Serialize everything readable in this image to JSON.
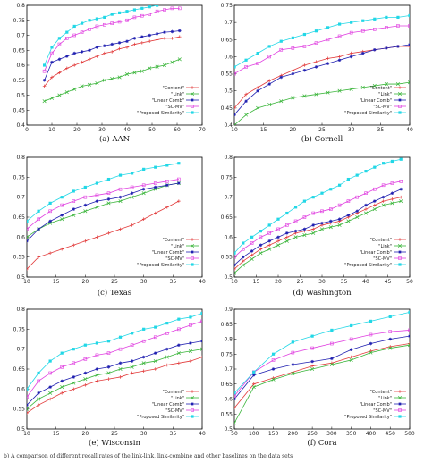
{
  "figure": {
    "bottom_strip": "b)  A comparison of different recall rates of the link-link, link-combine and other baselines on the data sets"
  },
  "series_colors": [
    "#e23b3b",
    "#3ab53a",
    "#1f1fb0",
    "#e040e0",
    "#22d7e6"
  ],
  "series_markers": [
    "plus",
    "x",
    "star",
    "square",
    "filled-square"
  ],
  "chart_data": [
    {
      "id": "aan",
      "type": "line",
      "caption": "(a)  AAN",
      "xlim": [
        0,
        70
      ],
      "ylim": [
        0.4,
        0.8
      ],
      "xticks": [
        "0",
        "10",
        "20",
        "30",
        "40",
        "50",
        "60",
        "70"
      ],
      "yticks": [
        "0.4",
        "0.45",
        "0.5",
        "0.55",
        "0.6",
        "0.65",
        "0.7",
        "0.75",
        "0.8"
      ],
      "legend_position": "bottom-right",
      "x": [
        7,
        10,
        13,
        16,
        19,
        22,
        25,
        28,
        31,
        34,
        37,
        40,
        43,
        46,
        49,
        52,
        55,
        58,
        61
      ],
      "series": [
        {
          "name": "\"Content\"",
          "values": [
            0.53,
            0.56,
            0.575,
            0.59,
            0.6,
            0.61,
            0.62,
            0.63,
            0.64,
            0.645,
            0.655,
            0.66,
            0.67,
            0.675,
            0.68,
            0.685,
            0.69,
            0.69,
            0.695
          ]
        },
        {
          "name": "\"Link\"",
          "values": [
            0.48,
            0.49,
            0.5,
            0.51,
            0.52,
            0.53,
            0.535,
            0.54,
            0.55,
            0.555,
            0.56,
            0.57,
            0.575,
            0.58,
            0.59,
            0.595,
            0.6,
            0.61,
            0.62
          ]
        },
        {
          "name": "\"Linear Comb\"",
          "values": [
            0.55,
            0.61,
            0.62,
            0.63,
            0.64,
            0.645,
            0.65,
            0.66,
            0.665,
            0.67,
            0.675,
            0.68,
            0.69,
            0.695,
            0.7,
            0.705,
            0.71,
            0.712,
            0.715
          ]
        },
        {
          "name": "\"SC-MV\"",
          "values": [
            0.58,
            0.64,
            0.67,
            0.69,
            0.7,
            0.71,
            0.72,
            0.73,
            0.735,
            0.74,
            0.745,
            0.75,
            0.76,
            0.765,
            0.77,
            0.78,
            0.785,
            0.79,
            0.79
          ]
        },
        {
          "name": "\"Proposed Similarity\"",
          "values": [
            0.6,
            0.66,
            0.69,
            0.71,
            0.73,
            0.74,
            0.75,
            0.755,
            0.76,
            0.77,
            0.775,
            0.78,
            0.785,
            0.79,
            0.795,
            0.8,
            0.805,
            0.81,
            0.815
          ]
        }
      ]
    },
    {
      "id": "cornell",
      "type": "line",
      "caption": "(b)  Cornell",
      "xlim": [
        10,
        40
      ],
      "ylim": [
        0.4,
        0.75
      ],
      "xticks": [
        "10",
        "15",
        "20",
        "25",
        "30",
        "35",
        "40"
      ],
      "yticks": [
        "0.4",
        "0.45",
        "0.5",
        "0.55",
        "0.6",
        "0.65",
        "0.7",
        "0.75"
      ],
      "legend_position": "bottom-right",
      "x": [
        10,
        12,
        14,
        16,
        18,
        20,
        22,
        24,
        26,
        28,
        30,
        32,
        34,
        36,
        38,
        40
      ],
      "series": [
        {
          "name": "\"Content\"",
          "values": [
            0.45,
            0.49,
            0.51,
            0.53,
            0.545,
            0.56,
            0.575,
            0.585,
            0.595,
            0.6,
            0.61,
            0.615,
            0.62,
            0.625,
            0.63,
            0.63
          ]
        },
        {
          "name": "\"Link\"",
          "values": [
            0.4,
            0.43,
            0.45,
            0.46,
            0.47,
            0.48,
            0.485,
            0.49,
            0.495,
            0.5,
            0.505,
            0.51,
            0.515,
            0.52,
            0.52,
            0.525
          ]
        },
        {
          "name": "\"Linear Comb\"",
          "values": [
            0.43,
            0.47,
            0.5,
            0.52,
            0.54,
            0.55,
            0.56,
            0.57,
            0.58,
            0.59,
            0.6,
            0.61,
            0.62,
            0.625,
            0.63,
            0.635
          ]
        },
        {
          "name": "\"SC-MV\"",
          "values": [
            0.55,
            0.57,
            0.58,
            0.6,
            0.62,
            0.625,
            0.63,
            0.64,
            0.65,
            0.66,
            0.67,
            0.675,
            0.68,
            0.685,
            0.69,
            0.69
          ]
        },
        {
          "name": "\"Proposed Similarity\"",
          "values": [
            0.57,
            0.59,
            0.61,
            0.63,
            0.645,
            0.655,
            0.665,
            0.675,
            0.685,
            0.695,
            0.7,
            0.705,
            0.71,
            0.715,
            0.715,
            0.72
          ]
        }
      ]
    },
    {
      "id": "texas",
      "type": "line",
      "caption": "(c)  Texas",
      "xlim": [
        10,
        40
      ],
      "ylim": [
        0.5,
        0.8
      ],
      "xticks": [
        "10",
        "15",
        "20",
        "25",
        "30",
        "35",
        "40"
      ],
      "yticks": [
        "0.5",
        "0.55",
        "0.6",
        "0.65",
        "0.7",
        "0.75",
        "0.8"
      ],
      "legend_position": "bottom-right",
      "x": [
        10,
        12,
        14,
        16,
        18,
        20,
        22,
        24,
        26,
        28,
        30,
        32,
        34,
        36
      ],
      "series": [
        {
          "name": "\"Content\"",
          "values": [
            0.52,
            0.55,
            0.56,
            0.57,
            0.58,
            0.59,
            0.6,
            0.61,
            0.62,
            0.63,
            0.645,
            0.66,
            0.675,
            0.69
          ]
        },
        {
          "name": "\"Link\"",
          "values": [
            0.6,
            0.62,
            0.635,
            0.645,
            0.655,
            0.665,
            0.675,
            0.685,
            0.69,
            0.7,
            0.71,
            0.72,
            0.73,
            0.735
          ]
        },
        {
          "name": "\"Linear Comb\"",
          "values": [
            0.59,
            0.62,
            0.64,
            0.655,
            0.67,
            0.68,
            0.69,
            0.695,
            0.7,
            0.71,
            0.72,
            0.725,
            0.73,
            0.735
          ]
        },
        {
          "name": "\"SC-MV\"",
          "values": [
            0.62,
            0.645,
            0.665,
            0.68,
            0.69,
            0.7,
            0.705,
            0.71,
            0.72,
            0.725,
            0.73,
            0.735,
            0.74,
            0.745
          ]
        },
        {
          "name": "\"Proposed Similarity\"",
          "values": [
            0.64,
            0.665,
            0.685,
            0.7,
            0.715,
            0.725,
            0.735,
            0.745,
            0.755,
            0.76,
            0.77,
            0.775,
            0.78,
            0.785
          ]
        }
      ]
    },
    {
      "id": "washington",
      "type": "line",
      "caption": "(d)  Washington",
      "xlim": [
        10,
        50
      ],
      "ylim": [
        0.5,
        0.8
      ],
      "xticks": [
        "10",
        "15",
        "20",
        "25",
        "30",
        "35",
        "40",
        "45",
        "50"
      ],
      "yticks": [
        "0.5",
        "0.55",
        "0.6",
        "0.65",
        "0.7",
        "0.75",
        "0.8"
      ],
      "legend_position": "bottom-right",
      "x": [
        10,
        12,
        14,
        16,
        18,
        20,
        22,
        24,
        26,
        28,
        30,
        32,
        34,
        36,
        38,
        40,
        42,
        44,
        46,
        48
      ],
      "series": [
        {
          "name": "\"Content\"",
          "values": [
            0.52,
            0.54,
            0.555,
            0.57,
            0.58,
            0.59,
            0.6,
            0.61,
            0.615,
            0.62,
            0.63,
            0.635,
            0.64,
            0.65,
            0.66,
            0.67,
            0.68,
            0.69,
            0.695,
            0.7
          ]
        },
        {
          "name": "\"Link\"",
          "values": [
            0.51,
            0.53,
            0.545,
            0.56,
            0.57,
            0.58,
            0.59,
            0.6,
            0.605,
            0.61,
            0.62,
            0.625,
            0.63,
            0.64,
            0.65,
            0.66,
            0.67,
            0.68,
            0.685,
            0.69
          ]
        },
        {
          "name": "\"Linear Comb\"",
          "values": [
            0.53,
            0.55,
            0.565,
            0.58,
            0.59,
            0.6,
            0.61,
            0.615,
            0.62,
            0.63,
            0.635,
            0.64,
            0.645,
            0.655,
            0.665,
            0.68,
            0.69,
            0.7,
            0.71,
            0.72
          ]
        },
        {
          "name": "\"SC-MV\"",
          "values": [
            0.55,
            0.57,
            0.585,
            0.6,
            0.61,
            0.62,
            0.63,
            0.64,
            0.65,
            0.66,
            0.665,
            0.67,
            0.68,
            0.69,
            0.7,
            0.71,
            0.72,
            0.73,
            0.735,
            0.74
          ]
        },
        {
          "name": "\"Proposed Similarity\"",
          "values": [
            0.56,
            0.585,
            0.6,
            0.615,
            0.63,
            0.645,
            0.66,
            0.675,
            0.69,
            0.7,
            0.71,
            0.72,
            0.73,
            0.745,
            0.755,
            0.765,
            0.775,
            0.785,
            0.79,
            0.795
          ]
        }
      ]
    },
    {
      "id": "wisconsin",
      "type": "line",
      "caption": "(e)  Wisconsin",
      "xlim": [
        10,
        40
      ],
      "ylim": [
        0.5,
        0.8
      ],
      "xticks": [
        "10",
        "15",
        "20",
        "25",
        "30",
        "35",
        "40"
      ],
      "yticks": [
        "0.5",
        "0.55",
        "0.6",
        "0.65",
        "0.7",
        "0.75",
        "0.8"
      ],
      "legend_position": "bottom-right",
      "x": [
        10,
        12,
        14,
        16,
        18,
        20,
        22,
        24,
        26,
        28,
        30,
        32,
        34,
        36,
        38,
        40
      ],
      "series": [
        {
          "name": "\"Content\"",
          "values": [
            0.54,
            0.56,
            0.575,
            0.59,
            0.6,
            0.61,
            0.62,
            0.625,
            0.63,
            0.64,
            0.645,
            0.65,
            0.66,
            0.665,
            0.67,
            0.68
          ]
        },
        {
          "name": "\"Link\"",
          "values": [
            0.55,
            0.575,
            0.59,
            0.605,
            0.615,
            0.625,
            0.635,
            0.64,
            0.65,
            0.655,
            0.665,
            0.67,
            0.68,
            0.69,
            0.695,
            0.7
          ]
        },
        {
          "name": "\"Linear Comb\"",
          "values": [
            0.56,
            0.59,
            0.605,
            0.62,
            0.63,
            0.64,
            0.65,
            0.655,
            0.665,
            0.67,
            0.68,
            0.69,
            0.7,
            0.71,
            0.715,
            0.72
          ]
        },
        {
          "name": "\"SC-MV\"",
          "values": [
            0.58,
            0.62,
            0.64,
            0.655,
            0.665,
            0.675,
            0.685,
            0.69,
            0.7,
            0.71,
            0.72,
            0.73,
            0.74,
            0.75,
            0.76,
            0.77
          ]
        },
        {
          "name": "\"Proposed Similarity\"",
          "values": [
            0.6,
            0.64,
            0.67,
            0.69,
            0.7,
            0.71,
            0.715,
            0.72,
            0.73,
            0.74,
            0.75,
            0.755,
            0.765,
            0.775,
            0.78,
            0.79
          ]
        }
      ]
    },
    {
      "id": "cora",
      "type": "line",
      "caption": "(f)  Cora",
      "xlim": [
        50,
        500
      ],
      "ylim": [
        0.5,
        0.9
      ],
      "xticks": [
        "50",
        "100",
        "150",
        "200",
        "250",
        "300",
        "350",
        "400",
        "450",
        "500"
      ],
      "yticks": [
        "0.5",
        "0.55",
        "0.6",
        "0.65",
        "0.7",
        "0.75",
        "0.8",
        "0.85",
        "0.9"
      ],
      "legend_position": "bottom-right",
      "x": [
        50,
        100,
        150,
        200,
        250,
        300,
        350,
        400,
        450,
        500
      ],
      "series": [
        {
          "name": "\"Content\"",
          "values": [
            0.57,
            0.65,
            0.67,
            0.69,
            0.71,
            0.72,
            0.74,
            0.76,
            0.775,
            0.785
          ]
        },
        {
          "name": "\"Link\"",
          "values": [
            0.52,
            0.64,
            0.665,
            0.685,
            0.7,
            0.715,
            0.73,
            0.755,
            0.77,
            0.78
          ]
        },
        {
          "name": "\"Linear Comb\"",
          "values": [
            0.6,
            0.68,
            0.7,
            0.715,
            0.725,
            0.735,
            0.765,
            0.785,
            0.8,
            0.81
          ]
        },
        {
          "name": "\"SC-MV\"",
          "values": [
            0.61,
            0.69,
            0.73,
            0.755,
            0.77,
            0.785,
            0.8,
            0.815,
            0.825,
            0.83
          ]
        },
        {
          "name": "\"Proposed Similarity\"",
          "values": [
            0.62,
            0.69,
            0.75,
            0.79,
            0.81,
            0.83,
            0.845,
            0.86,
            0.875,
            0.89
          ]
        }
      ]
    }
  ]
}
